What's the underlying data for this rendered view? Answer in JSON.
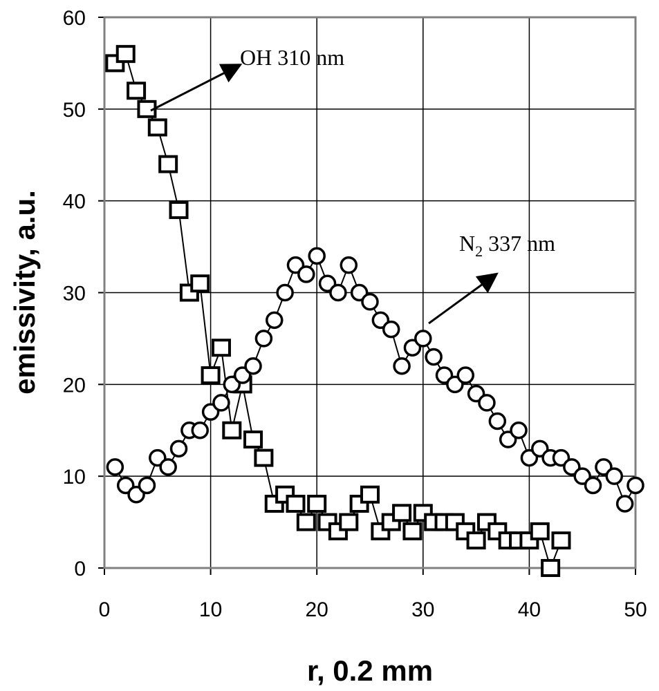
{
  "chart_data": {
    "type": "scatter",
    "xlabel": "r, 0.2 mm",
    "ylabel": "emissivity, a.u.",
    "xlim": [
      0,
      50
    ],
    "ylim": [
      0,
      60
    ],
    "xticks": [
      "0",
      "10",
      "20",
      "30",
      "40",
      "50"
    ],
    "yticks": [
      "0",
      "10",
      "20",
      "30",
      "40",
      "50",
      "60"
    ],
    "grid": true,
    "annotations": [
      {
        "id": "oh",
        "text": "OH 310 nm"
      },
      {
        "id": "n2",
        "text_main": "N",
        "text_sub": "2",
        "text_rest": " 337 nm"
      }
    ],
    "series": [
      {
        "marker": "square",
        "x": [
          1,
          2,
          3,
          4,
          5,
          6,
          7,
          8,
          9,
          10,
          11,
          12,
          13,
          14,
          15,
          16,
          17,
          18,
          19,
          20,
          21,
          22,
          23,
          24,
          25,
          26,
          27,
          28,
          29,
          30,
          31,
          32,
          33,
          34,
          35,
          36,
          37,
          38,
          39,
          40,
          41,
          42,
          43
        ],
        "y": [
          55,
          56,
          52,
          50,
          48,
          44,
          39,
          30,
          31,
          21,
          24,
          15,
          20,
          14,
          12,
          7,
          8,
          7,
          5,
          7,
          5,
          4,
          5,
          7,
          8,
          4,
          5,
          6,
          4,
          6,
          5,
          5,
          5,
          4,
          3,
          5,
          4,
          3,
          3,
          3,
          4,
          0,
          3
        ]
      },
      {
        "marker": "circle",
        "x": [
          1,
          2,
          3,
          4,
          5,
          6,
          7,
          8,
          9,
          10,
          11,
          12,
          13,
          14,
          15,
          16,
          17,
          18,
          19,
          20,
          21,
          22,
          23,
          24,
          25,
          26,
          27,
          28,
          29,
          30,
          31,
          32,
          33,
          34,
          35,
          36,
          37,
          38,
          39,
          40,
          41,
          42,
          43,
          44,
          45,
          46,
          47,
          48,
          49,
          50
        ],
        "y": [
          11,
          9,
          8,
          9,
          12,
          11,
          13,
          15,
          15,
          17,
          18,
          20,
          21,
          22,
          25,
          27,
          30,
          33,
          32,
          34,
          31,
          30,
          33,
          30,
          29,
          27,
          26,
          22,
          24,
          25,
          23,
          21,
          20,
          21,
          19,
          18,
          16,
          14,
          15,
          12,
          13,
          12,
          12,
          11,
          10,
          9,
          11,
          10,
          7,
          9
        ]
      }
    ]
  }
}
